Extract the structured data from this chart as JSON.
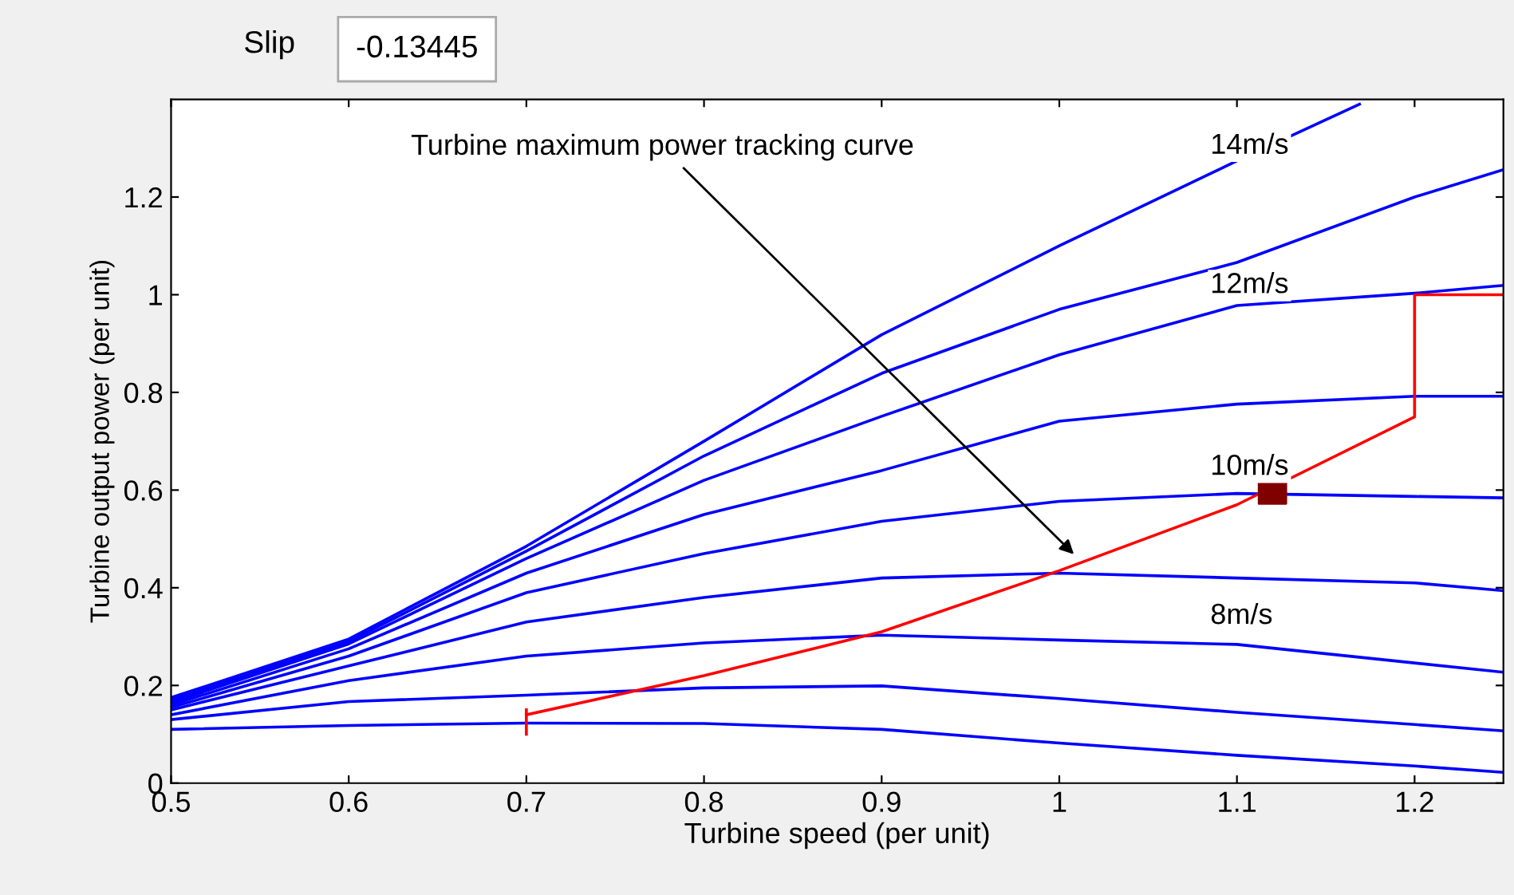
{
  "chart_data": {
    "type": "line",
    "xlabel": "Turbine speed (per unit)",
    "ylabel": "Turbine output power (per unit)",
    "xlim": [
      0.5,
      1.25
    ],
    "ylim": [
      0,
      1.4
    ],
    "xticks": [
      0.5,
      0.6,
      0.7,
      0.8,
      0.9,
      1,
      1.1,
      1.2
    ],
    "yticks": [
      0,
      0.2,
      0.4,
      0.6,
      0.8,
      1,
      1.2
    ],
    "grid": false,
    "legend": false,
    "line_style": "solid",
    "marker": "none",
    "series": [
      {
        "name": "14m/s",
        "color": "#0000ff",
        "x": [
          0.5,
          0.6,
          0.7,
          0.8,
          0.9,
          1.0,
          1.1,
          1.169
        ],
        "values": [
          0.175,
          0.295,
          0.485,
          0.7,
          0.918,
          1.1,
          1.274,
          1.39
        ]
      },
      {
        "color": "#0000ff",
        "x": [
          0.5,
          0.6,
          0.7,
          0.8,
          0.9,
          1.0,
          1.1,
          1.2,
          1.25
        ],
        "values": [
          0.17,
          0.29,
          0.475,
          0.67,
          0.839,
          0.97,
          1.066,
          1.2,
          1.256
        ]
      },
      {
        "name": "12m/s",
        "color": "#0000ff",
        "x": [
          0.5,
          0.6,
          0.7,
          0.8,
          0.9,
          1.0,
          1.1,
          1.2,
          1.25
        ],
        "values": [
          0.165,
          0.285,
          0.46,
          0.62,
          0.751,
          0.877,
          0.978,
          1.003,
          1.019
        ]
      },
      {
        "color": "#0000ff",
        "x": [
          0.5,
          0.6,
          0.7,
          0.8,
          0.9,
          1.0,
          1.1,
          1.2,
          1.25
        ],
        "values": [
          0.16,
          0.275,
          0.43,
          0.55,
          0.64,
          0.741,
          0.776,
          0.792,
          0.792
        ]
      },
      {
        "name": "10m/s",
        "color": "#0000ff",
        "x": [
          0.5,
          0.6,
          0.7,
          0.8,
          0.9,
          1.0,
          1.1,
          1.2,
          1.25
        ],
        "values": [
          0.155,
          0.26,
          0.39,
          0.47,
          0.536,
          0.577,
          0.593,
          0.587,
          0.584
        ]
      },
      {
        "color": "#0000ff",
        "x": [
          0.5,
          0.6,
          0.7,
          0.8,
          0.9,
          1.0,
          1.1,
          1.2,
          1.25
        ],
        "values": [
          0.15,
          0.24,
          0.33,
          0.38,
          0.42,
          0.43,
          0.42,
          0.41,
          0.394
        ]
      },
      {
        "name": "8m/s",
        "color": "#0000ff",
        "x": [
          0.5,
          0.6,
          0.7,
          0.8,
          0.9,
          1.0,
          1.1,
          1.2,
          1.25
        ],
        "values": [
          0.14,
          0.21,
          0.26,
          0.287,
          0.303,
          0.293,
          0.284,
          0.246,
          0.227
        ]
      },
      {
        "color": "#0000ff",
        "x": [
          0.5,
          0.6,
          0.7,
          0.8,
          0.9,
          1.0,
          1.1,
          1.2,
          1.25
        ],
        "values": [
          0.13,
          0.167,
          0.18,
          0.195,
          0.199,
          0.173,
          0.145,
          0.12,
          0.107
        ]
      },
      {
        "color": "#0000ff",
        "x": [
          0.5,
          0.6,
          0.7,
          0.8,
          0.9,
          1.0,
          1.1,
          1.2,
          1.25
        ],
        "values": [
          0.11,
          0.118,
          0.123,
          0.122,
          0.11,
          0.082,
          0.057,
          0.035,
          0.022
        ]
      },
      {
        "color": "#ff0000",
        "x": [
          0.7,
          0.8,
          0.9,
          1.0,
          1.1,
          1.2,
          1.2,
          1.25
        ],
        "values": [
          0.14,
          0.22,
          0.31,
          0.435,
          0.57,
          0.75,
          1.0,
          1.0
        ]
      },
      {
        "color": "#ff0000",
        "x": [
          0.7,
          0.7
        ],
        "values": [
          0.1,
          0.15
        ]
      },
      {
        "type": "scatter",
        "marker": "square",
        "color": "#800000",
        "x": [
          1.12
        ],
        "values": [
          0.6
        ]
      }
    ],
    "annotations": [
      "Turbine maximum power tracking curve",
      "Slip",
      "-0.13445"
    ]
  }
}
